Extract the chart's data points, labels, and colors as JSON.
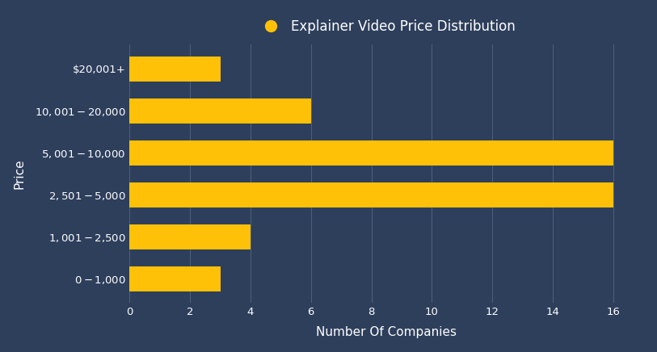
{
  "title": "Explainer Video Price Distribution",
  "xlabel": "Number Of Companies",
  "ylabel": "Price",
  "categories": [
    "$0 - $1,000",
    "$1,001 - $2,500",
    "$2,501 - $5,000",
    "$5,001 - $10,000",
    "$10,001 - $20,000",
    "$20,001+"
  ],
  "values": [
    3,
    4,
    16,
    16,
    6,
    3
  ],
  "bar_color": "#FFC107",
  "background_color": "#2e3f5c",
  "text_color": "#ffffff",
  "grid_color": "#4a5e7a",
  "xlim": [
    0,
    17
  ],
  "xticks": [
    0,
    2,
    4,
    6,
    8,
    10,
    12,
    14,
    16
  ],
  "legend_marker_color": "#FFC107",
  "title_fontsize": 12,
  "axis_label_fontsize": 11,
  "tick_fontsize": 9.5
}
